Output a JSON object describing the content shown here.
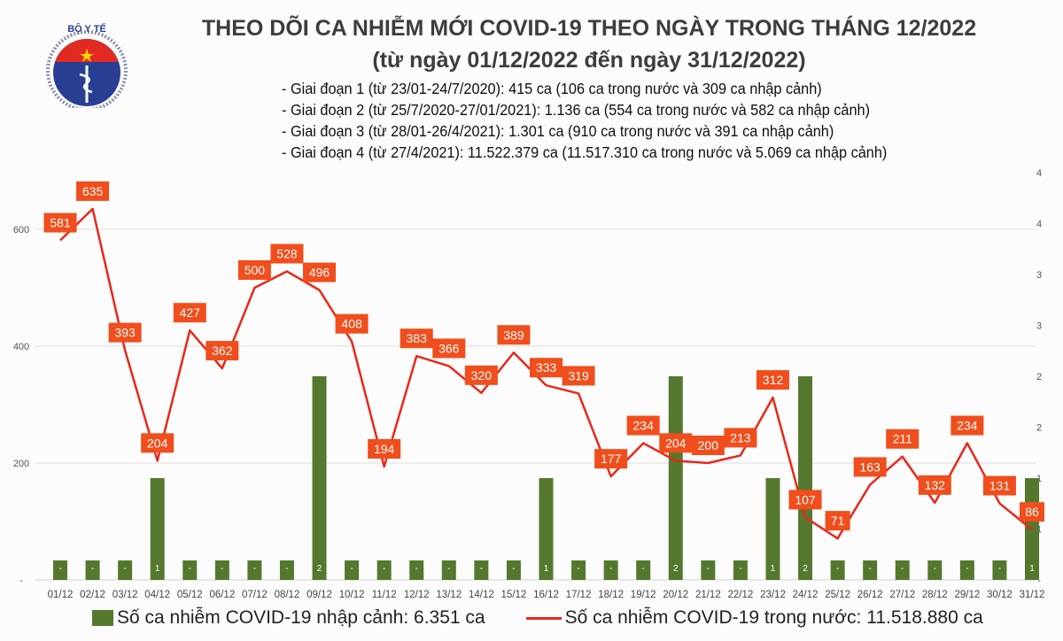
{
  "header": {
    "title": "THEO DÕI CA NHIỄM MỚI COVID-19 THEO NGÀY TRONG THÁNG 12/2022",
    "subtitle": "(từ ngày 01/12/2022 đến ngày 31/12/2022)",
    "logo_text": "BỘ Y TẾ - MINISTRY OF HEALTH",
    "notes": [
      "- Giai đoạn 1 (từ 23/01-24/7/2020): 415 ca (106 ca trong nước và 309 ca nhập cảnh)",
      "- Giai đoạn 2 (từ 25/7/2020-27/01/2021): 1.136 ca (554 ca trong nước và 582 ca nhập cảnh)",
      "- Giai đoạn 3 (từ 28/01-26/4/2021): 1.301 ca (910 ca trong nước và 391 ca nhập cảnh)",
      "- Giai đoạn 4 (từ 27/4/2021): 11.522.379 ca (11.517.310 ca trong nước và 5.069 ca nhập cảnh)"
    ]
  },
  "chart_data": {
    "type": "bar+line",
    "categories": [
      "01/12",
      "02/12",
      "03/12",
      "04/12",
      "05/12",
      "06/12",
      "07/12",
      "08/12",
      "09/12",
      "10/12",
      "11/12",
      "12/12",
      "13/12",
      "14/12",
      "15/12",
      "16/12",
      "17/12",
      "18/12",
      "19/12",
      "20/12",
      "21/12",
      "22/12",
      "23/12",
      "24/12",
      "25/12",
      "26/12",
      "27/12",
      "28/12",
      "29/12",
      "30/12",
      "31/12"
    ],
    "series": [
      {
        "name": "Số ca nhiễm COVID-19 nhập cảnh: 6.351 ca",
        "type": "bar",
        "axis": "right",
        "color": "#54792e",
        "values": [
          0,
          0,
          0,
          1,
          0,
          0,
          0,
          0,
          2,
          0,
          0,
          0,
          0,
          0,
          0,
          1,
          0,
          0,
          0,
          2,
          0,
          0,
          1,
          2,
          0,
          0,
          0,
          0,
          0,
          0,
          1
        ]
      },
      {
        "name": "Số ca nhiễm COVID-19 trong nước: 11.518.880 ca",
        "type": "line",
        "axis": "left",
        "color": "#e8281a",
        "label_color": "#f04e1c",
        "values": [
          581,
          635,
          393,
          204,
          427,
          362,
          500,
          528,
          496,
          408,
          194,
          383,
          366,
          320,
          389,
          333,
          319,
          177,
          234,
          204,
          200,
          213,
          312,
          107,
          71,
          163,
          211,
          132,
          234,
          131,
          86
        ]
      }
    ],
    "left_axis": {
      "ticks": [
        "600",
        "400",
        "200",
        "-"
      ],
      "tick_values": [
        600,
        400,
        200,
        0
      ],
      "ylim": [
        0,
        700
      ]
    },
    "right_axis": {
      "ticks": [
        "4",
        "4",
        "3",
        "3",
        "2",
        "2",
        "1",
        "1",
        "-"
      ],
      "tick_values": [
        4,
        3.5,
        3,
        2.5,
        2,
        1.5,
        1,
        0.5,
        0
      ],
      "ylim": [
        0,
        4
      ]
    },
    "zero_label": "-",
    "grid": true,
    "legend": "bottom"
  }
}
